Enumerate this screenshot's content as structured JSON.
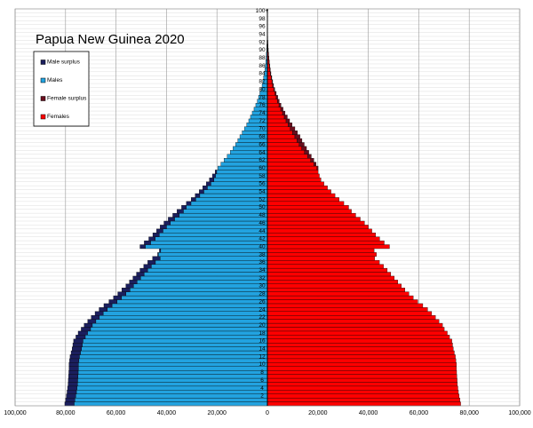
{
  "chart_data": {
    "type": "pyramid",
    "title": "Papua New Guinea 2020",
    "categories": [
      null,
      null,
      "2",
      null,
      "4",
      null,
      "6",
      null,
      "8",
      null,
      "10",
      null,
      "12",
      null,
      "14",
      null,
      "16",
      null,
      "18",
      null,
      "20",
      null,
      "22",
      null,
      "24",
      null,
      "26",
      null,
      "28",
      null,
      "30",
      null,
      "32",
      null,
      "34",
      null,
      "36",
      null,
      "38",
      null,
      "40",
      null,
      "42",
      null,
      "44",
      null,
      "46",
      null,
      "48",
      null,
      "50",
      null,
      "52",
      null,
      "54",
      null,
      "56",
      null,
      "58",
      null,
      "60",
      null,
      "62",
      null,
      "64",
      null,
      "66",
      null,
      "68",
      null,
      "70",
      null,
      "72",
      null,
      "74",
      null,
      "76",
      null,
      "78",
      null,
      "80",
      null,
      "82",
      null,
      "84",
      null,
      "86",
      null,
      "88",
      null,
      "90",
      null,
      "92",
      null,
      "94",
      null,
      "96",
      null,
      "98",
      null,
      "100+"
    ],
    "series": [
      {
        "name": "Male surplus",
        "color": "#1b1f5e",
        "side": "left",
        "values": [
          3700,
          3700,
          3700,
          3700,
          3700,
          3700,
          3700,
          3700,
          3700,
          3700,
          3700,
          3700,
          3700,
          3700,
          3700,
          3700,
          3700,
          3700,
          3700,
          3700,
          3200,
          3200,
          3200,
          3200,
          3200,
          3200,
          3200,
          3200,
          3200,
          3200,
          3000,
          3000,
          3000,
          3000,
          3000,
          3000,
          3000,
          3000,
          300,
          500,
          2100,
          2500,
          2500,
          2500,
          2500,
          2500,
          2500,
          2500,
          2500,
          2500,
          1800,
          1800,
          1800,
          1800,
          1800,
          1800,
          1800,
          1800,
          1200,
          600,
          0,
          0,
          0,
          0,
          0,
          0,
          0,
          0,
          0,
          0,
          0,
          0,
          0,
          0,
          0,
          0,
          0,
          0,
          0,
          0,
          0,
          0,
          0,
          0,
          0,
          0,
          0,
          0,
          0,
          0,
          0,
          0,
          0,
          0,
          0,
          0,
          0,
          0,
          0,
          0,
          0
        ]
      },
      {
        "name": "Males",
        "color": "#22a3e0",
        "side": "left",
        "values": [
          76600,
          76300,
          76000,
          75700,
          75500,
          75300,
          75200,
          75100,
          75000,
          74900,
          74900,
          74700,
          74500,
          74100,
          73700,
          73400,
          73100,
          72200,
          71300,
          70100,
          69400,
          68000,
          66600,
          65100,
          63500,
          61600,
          59600,
          57800,
          56100,
          54500,
          53100,
          51700,
          50300,
          48900,
          47500,
          46000,
          44400,
          42500,
          43200,
          42300,
          48400,
          46300,
          44500,
          42900,
          41400,
          40000,
          38500,
          36800,
          35000,
          33300,
          32200,
          30300,
          28400,
          26800,
          25200,
          23800,
          22400,
          21200,
          20600,
          20100,
          19600,
          18400,
          17200,
          15900,
          14700,
          13600,
          12600,
          11700,
          10900,
          10000,
          9100,
          8200,
          7400,
          6700,
          6000,
          5300,
          4600,
          4000,
          3500,
          3000,
          2500,
          2100,
          1800,
          1500,
          1200,
          1000,
          800,
          650,
          500,
          400,
          300,
          220,
          160,
          110,
          80,
          55,
          40,
          25,
          15,
          10,
          10
        ]
      },
      {
        "name": "Female surplus",
        "color": "#6a0e1e",
        "side": "right",
        "values": [
          0,
          0,
          0,
          0,
          0,
          0,
          0,
          0,
          0,
          0,
          0,
          0,
          0,
          0,
          0,
          0,
          0,
          0,
          0,
          0,
          0,
          0,
          0,
          0,
          0,
          0,
          0,
          0,
          0,
          0,
          0,
          0,
          0,
          0,
          0,
          0,
          0,
          0,
          0,
          0,
          0,
          0,
          0,
          0,
          0,
          0,
          0,
          0,
          0,
          0,
          0,
          0,
          0,
          0,
          0,
          0,
          0,
          0,
          0,
          0,
          500,
          900,
          1200,
          1500,
          1700,
          1900,
          2000,
          2000,
          2000,
          1900,
          1800,
          1600,
          1400,
          1200,
          1000,
          900,
          800,
          700,
          600,
          500,
          400,
          350,
          300,
          250,
          200,
          180,
          150,
          120,
          100,
          80,
          60,
          50,
          40,
          30,
          25,
          20,
          15,
          10,
          8,
          5,
          5
        ]
      },
      {
        "name": "Females",
        "color": "#ff0000",
        "side": "right",
        "values": [
          76600,
          76300,
          76000,
          75700,
          75500,
          75300,
          75200,
          75100,
          75000,
          74900,
          74900,
          74700,
          74500,
          74100,
          73700,
          73400,
          73100,
          72200,
          71300,
          70100,
          69400,
          68000,
          66600,
          65100,
          63500,
          61600,
          59600,
          57800,
          56100,
          54500,
          53100,
          51700,
          50300,
          48900,
          47500,
          46000,
          44400,
          42500,
          43200,
          42300,
          48400,
          46300,
          44500,
          42900,
          41400,
          40000,
          38500,
          36800,
          35000,
          33300,
          32200,
          30300,
          28400,
          26800,
          25200,
          23800,
          22400,
          21200,
          20600,
          20100,
          19600,
          18400,
          17200,
          15900,
          14700,
          13600,
          12600,
          11700,
          10900,
          10000,
          9100,
          8200,
          7400,
          6700,
          6000,
          5300,
          4600,
          4000,
          3500,
          3000,
          2500,
          2100,
          1800,
          1500,
          1200,
          1000,
          800,
          650,
          500,
          400,
          300,
          220,
          160,
          110,
          80,
          55,
          40,
          25,
          15,
          10,
          10
        ]
      }
    ],
    "xlim": [
      -100000,
      100000
    ],
    "xticks": [
      {
        "value": -100000,
        "label": "100,000"
      },
      {
        "value": -80000,
        "label": "80,000"
      },
      {
        "value": -60000,
        "label": "60,000"
      },
      {
        "value": -40000,
        "label": "40,000"
      },
      {
        "value": -20000,
        "label": "20,000"
      },
      0,
      {
        "value": 20000,
        "label": "20,000"
      },
      {
        "value": 40000,
        "label": "40,000"
      },
      {
        "value": 60000,
        "label": "60,000"
      },
      {
        "value": 80000,
        "label": "80,000"
      },
      {
        "value": 100000,
        "label": "100,000"
      }
    ],
    "grid": true
  }
}
